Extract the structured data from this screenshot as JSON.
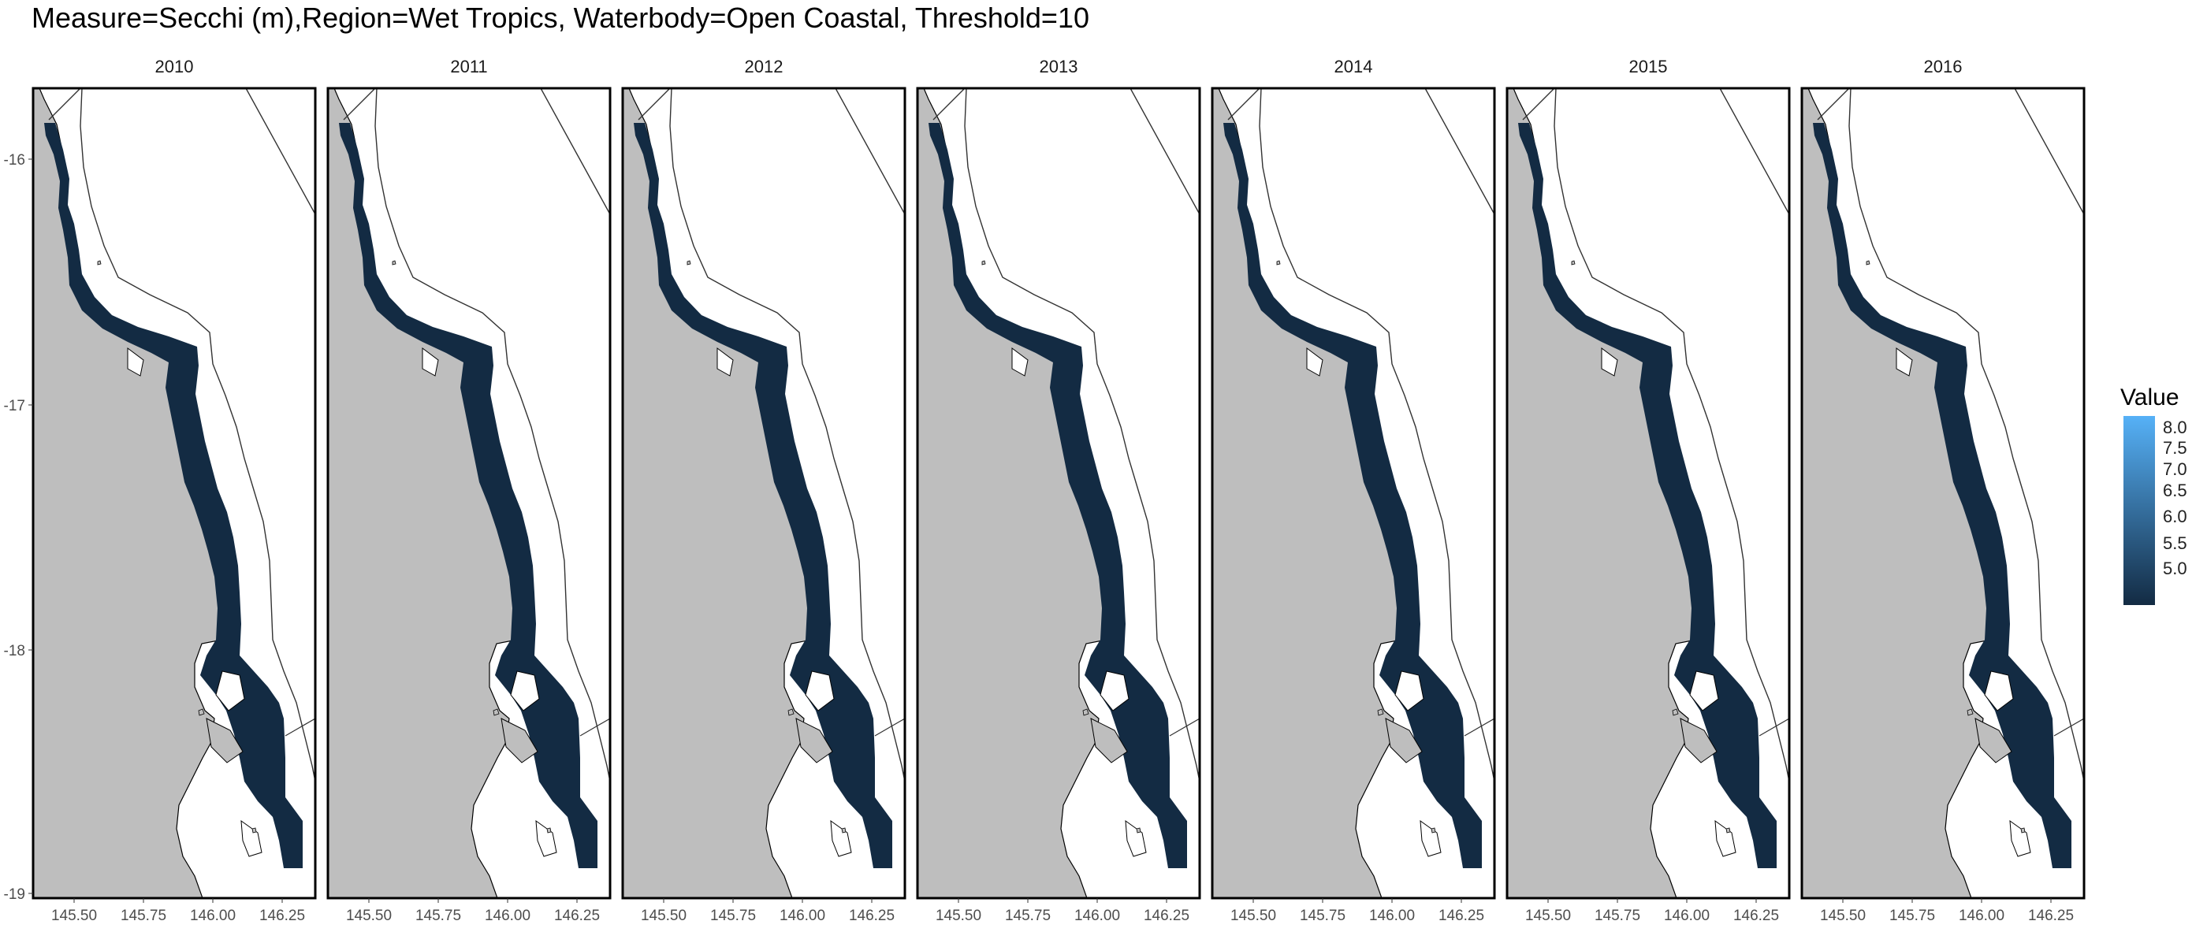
{
  "title": "Measure=Secchi (m),Region=Wet Tropics, Waterbody=Open Coastal, Threshold=10",
  "facets": [
    "2010",
    "2011",
    "2012",
    "2013",
    "2014",
    "2015",
    "2016"
  ],
  "x_ticks": [
    "145.50",
    "145.75",
    "146.00",
    "146.25"
  ],
  "y_ticks": [
    "-16",
    "-17",
    "-18",
    "-19"
  ],
  "legend": {
    "title": "Value",
    "ticks": [
      "8.0",
      "7.5",
      "7.0",
      "6.5",
      "6.0",
      "5.5",
      "5.0"
    ],
    "low_color": "#132b43",
    "high_color": "#56b1f7"
  },
  "colors": {
    "land": "#bebebe",
    "water": "#ffffff",
    "fill": "#132b43"
  }
}
